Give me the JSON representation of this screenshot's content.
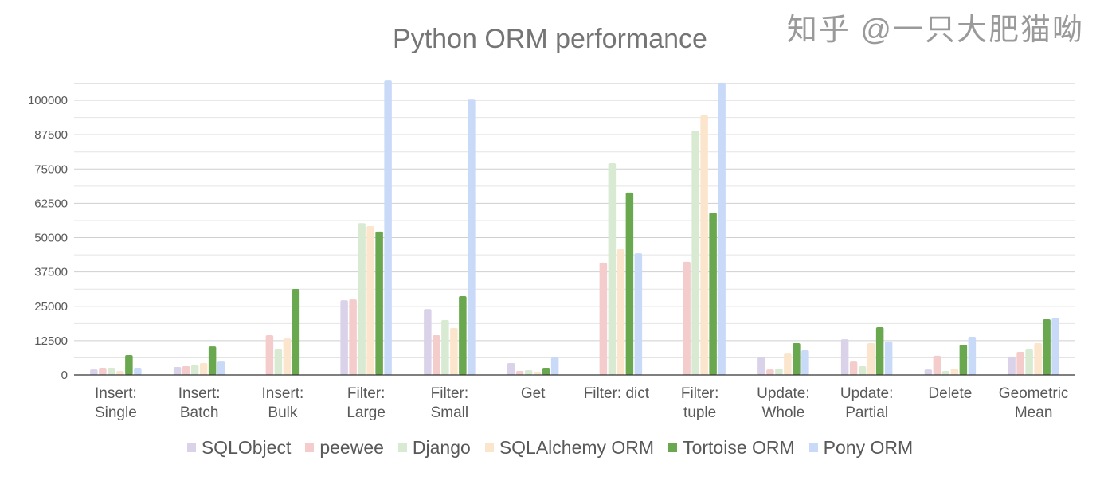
{
  "chart_data": {
    "type": "bar",
    "title": "Python ORM performance",
    "xlabel": "",
    "ylabel": "",
    "ylim": [
      0,
      106250
    ],
    "yticks": [
      0,
      12500,
      25000,
      37500,
      50000,
      62500,
      75000,
      87500,
      100000
    ],
    "grid": true,
    "legend_position": "bottom",
    "categories": [
      [
        "Insert:",
        "Single"
      ],
      [
        "Insert:",
        "Batch"
      ],
      [
        "Insert:",
        "Bulk"
      ],
      [
        "Filter:",
        "Large"
      ],
      [
        "Filter:",
        "Small"
      ],
      [
        "Get"
      ],
      [
        "Filter: dict"
      ],
      [
        "Filter:",
        "tuple"
      ],
      [
        "Update:",
        "Whole"
      ],
      [
        "Update:",
        "Partial"
      ],
      [
        "Delete"
      ],
      [
        "Geometric",
        "Mean"
      ]
    ],
    "series": [
      {
        "name": "SQLObject",
        "color": "#d9d2e9",
        "values": [
          2000,
          2900,
          0,
          27200,
          24000,
          4350,
          0,
          0,
          6400,
          13000,
          2000,
          6700
        ]
      },
      {
        "name": "peewee",
        "color": "#f4cccc",
        "values": [
          2600,
          3200,
          14500,
          27500,
          14500,
          1450,
          40900,
          41200,
          2000,
          4900,
          7000,
          8400
        ]
      },
      {
        "name": "Django",
        "color": "#d9ead3",
        "values": [
          2600,
          3500,
          9300,
          55300,
          20000,
          1750,
          77100,
          89000,
          2300,
          3200,
          1450,
          9300
        ]
      },
      {
        "name": "SQLAlchemy ORM",
        "color": "#fce5cd",
        "values": [
          1450,
          4350,
          13300,
          54200,
          17100,
          1150,
          45800,
          94500,
          7800,
          11600,
          2300,
          11600
        ]
      },
      {
        "name": "Tortoise ORM",
        "color": "#6aa84f",
        "values": [
          7250,
          10400,
          31300,
          52200,
          28700,
          2600,
          66400,
          59100,
          11600,
          17400,
          11000,
          20300
        ]
      },
      {
        "name": "Pony ORM",
        "color": "#c9daf8",
        "values": [
          2600,
          4900,
          0,
          107200,
          100500,
          6400,
          44300,
          106400,
          9000,
          12200,
          13900,
          20600
        ]
      }
    ]
  },
  "watermark": "知乎 @一只大肥猫呦"
}
